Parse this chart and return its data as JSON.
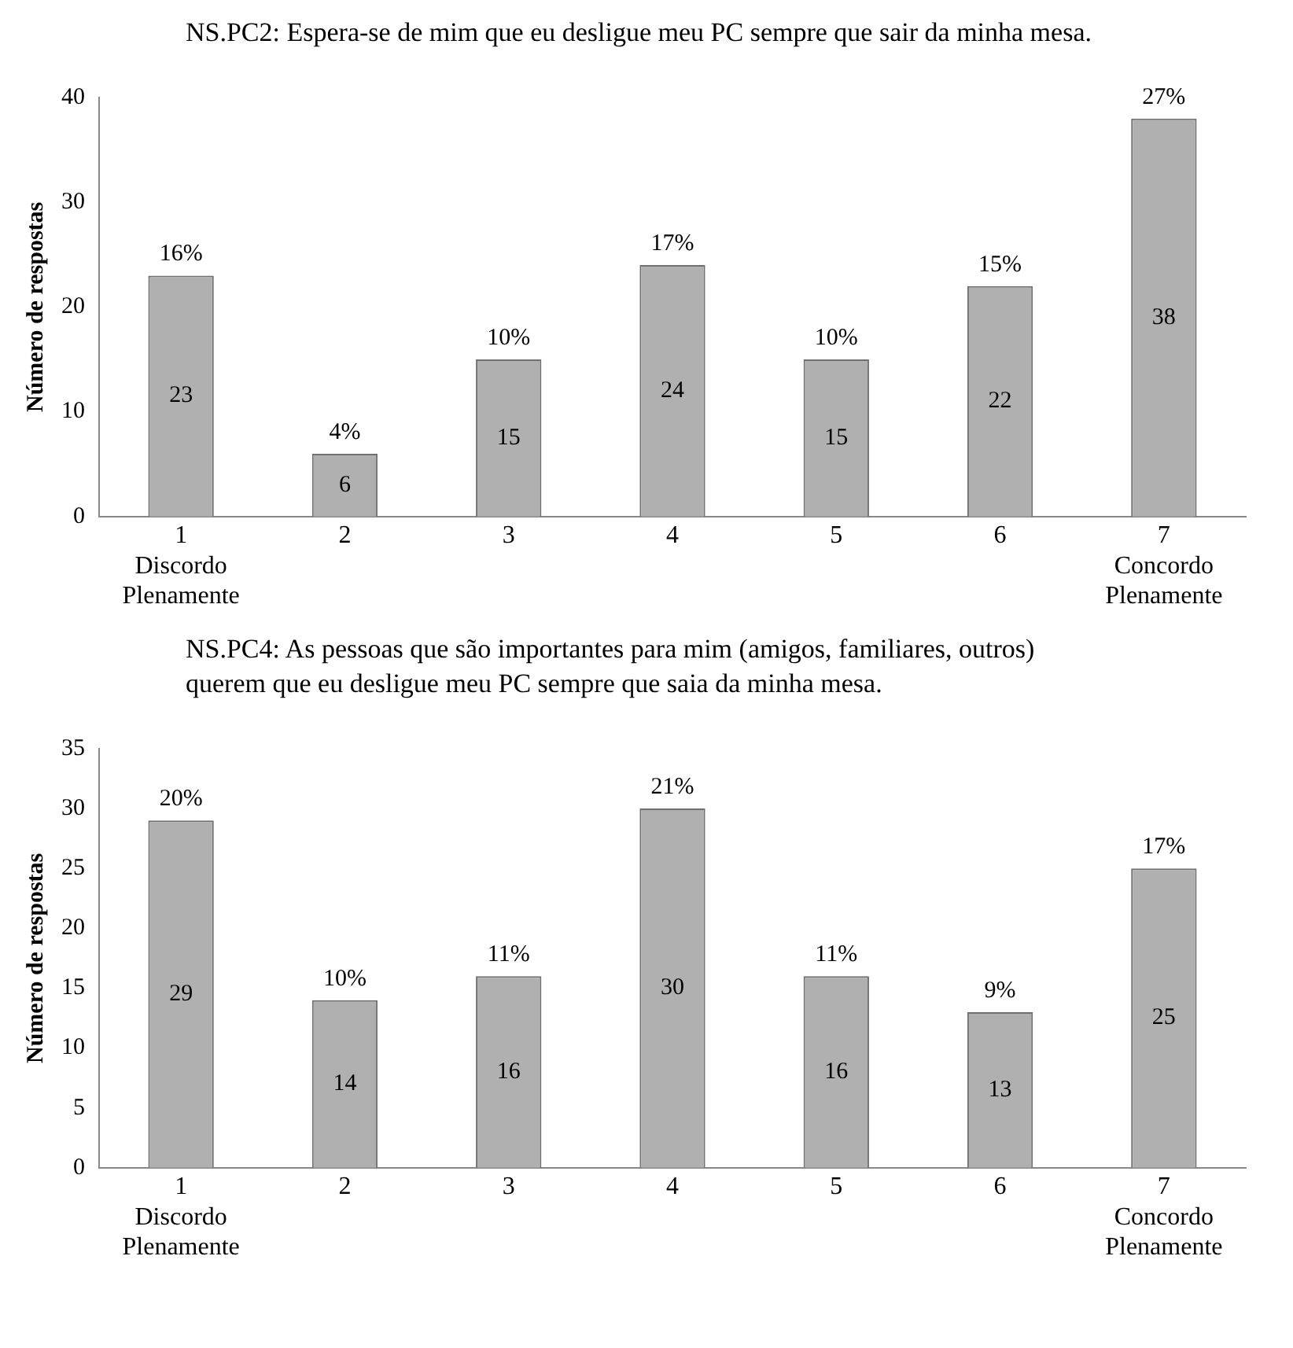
{
  "chart_data": [
    {
      "type": "bar",
      "title": "NS.PC2: Espera-se de mim que eu desligue meu PC sempre que sair da minha mesa.",
      "ylabel": "Número de respostas",
      "categories": [
        "1\nDiscordo\nPlenamente",
        "2",
        "3",
        "4",
        "5",
        "6",
        "7\nConcordo\nPlenamente"
      ],
      "series": [
        {
          "color": "#b0b0b0",
          "values": [
            23,
            6,
            15,
            24,
            15,
            22,
            38
          ]
        }
      ],
      "value_labels": [
        "16%",
        "4%",
        "10%",
        "17%",
        "10%",
        "15%",
        "27%"
      ],
      "data_labels": true,
      "ylim": [
        0,
        40
      ],
      "yticks": [
        0,
        10,
        20,
        30,
        40
      ],
      "grid": false,
      "legend": false
    },
    {
      "type": "bar",
      "title": "NS.PC4: As pessoas que são importantes para mim (amigos, familiares, outros) querem que eu desligue meu PC sempre que saia da minha mesa.",
      "ylabel": "Número de respostas",
      "categories": [
        "1\nDiscordo\nPlenamente",
        "2",
        "3",
        "4",
        "5",
        "6",
        "7\nConcordo\nPlenamente"
      ],
      "series": [
        {
          "color": "#b0b0b0",
          "values": [
            29,
            14,
            16,
            30,
            16,
            13,
            25
          ]
        }
      ],
      "value_labels": [
        "20%",
        "10%",
        "11%",
        "21%",
        "11%",
        "9%",
        "17%"
      ],
      "data_labels": true,
      "ylim": [
        0,
        35
      ],
      "yticks": [
        0,
        5,
        10,
        15,
        20,
        25,
        30,
        35
      ],
      "grid": false,
      "legend": false
    }
  ]
}
